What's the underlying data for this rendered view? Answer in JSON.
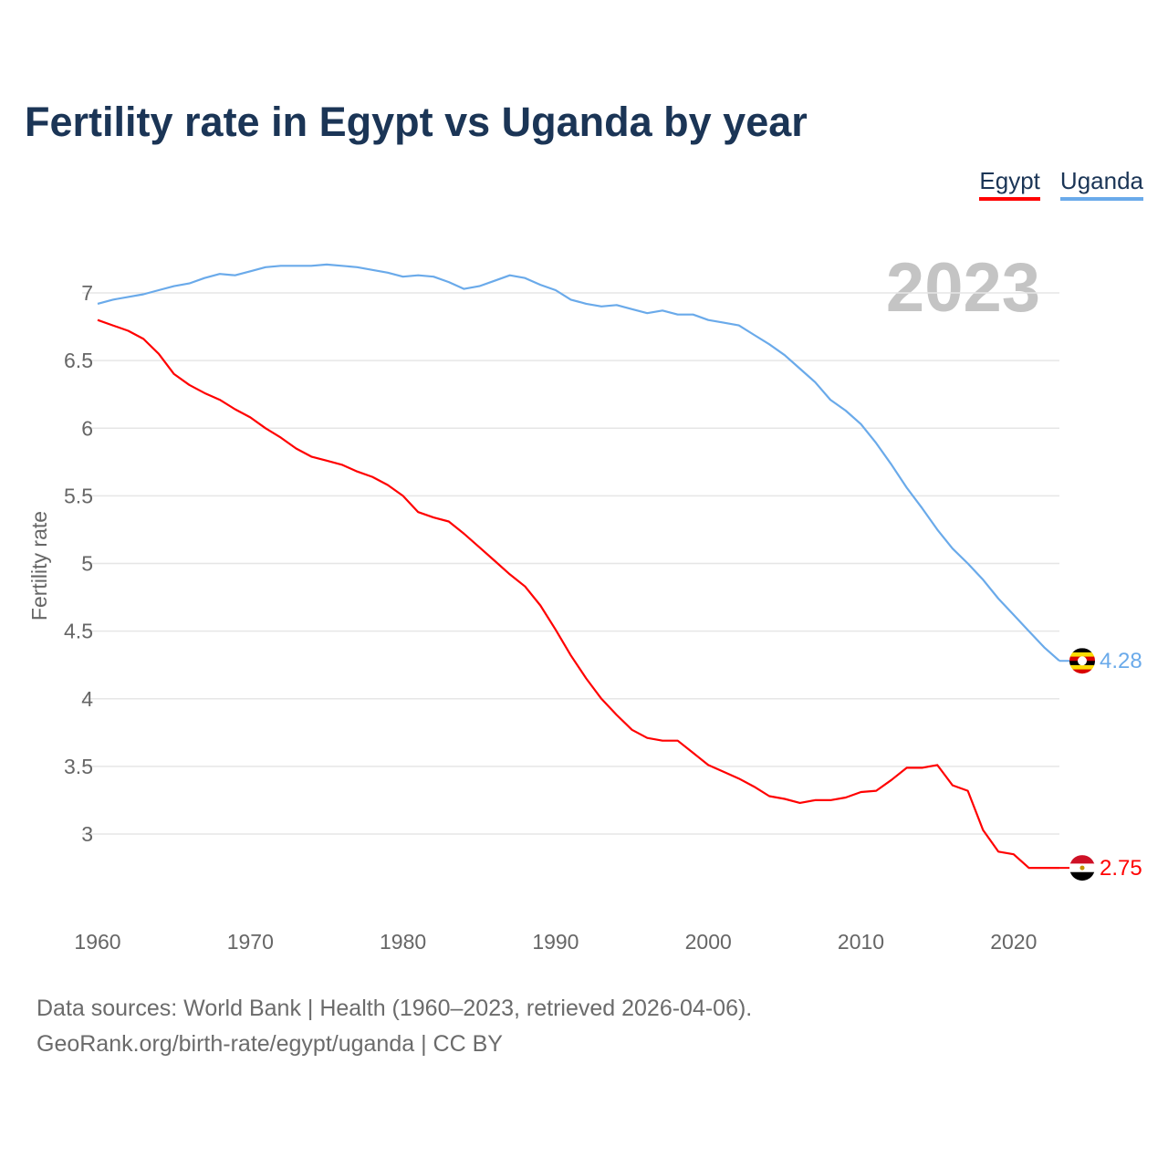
{
  "chart_data": {
    "type": "line",
    "title": "Fertility rate in Egypt vs Uganda by year",
    "xlabel": "",
    "ylabel": "Fertility rate",
    "xlim": [
      1960,
      2023
    ],
    "ylim": [
      2.5,
      7.3
    ],
    "yticks": [
      3,
      3.5,
      4,
      4.5,
      5,
      5.5,
      6,
      6.5,
      7
    ],
    "ytick_labels": [
      "3",
      "3.5",
      "4",
      "4.5",
      "5",
      "5.5",
      "6",
      "6.5",
      "7"
    ],
    "xticks": [
      1960,
      1970,
      1980,
      1990,
      2000,
      2010,
      2020
    ],
    "xtick_labels": [
      "1960",
      "1970",
      "1980",
      "1990",
      "2000",
      "2010",
      "2020"
    ],
    "grid": true,
    "legend_position": "top-right",
    "year_label": "2023",
    "x_start": 1960,
    "series": [
      {
        "name": "Egypt",
        "color": "#ff0000",
        "end_label": "2.75",
        "values": [
          6.8,
          6.76,
          6.72,
          6.66,
          6.55,
          6.4,
          6.32,
          6.26,
          6.21,
          6.14,
          6.08,
          6.0,
          5.93,
          5.85,
          5.79,
          5.76,
          5.73,
          5.68,
          5.64,
          5.58,
          5.5,
          5.38,
          5.34,
          5.31,
          5.22,
          5.12,
          5.02,
          4.92,
          4.83,
          4.69,
          4.51,
          4.32,
          4.15,
          4.0,
          3.88,
          3.77,
          3.71,
          3.69,
          3.69,
          3.6,
          3.51,
          3.46,
          3.41,
          3.35,
          3.28,
          3.26,
          3.23,
          3.25,
          3.25,
          3.27,
          3.31,
          3.32,
          3.4,
          3.49,
          3.49,
          3.51,
          3.36,
          3.32,
          3.03,
          2.87,
          2.85,
          2.75,
          2.75,
          2.75
        ]
      },
      {
        "name": "Uganda",
        "color": "#6aaaea",
        "end_label": "4.28",
        "values": [
          6.92,
          6.95,
          6.97,
          6.99,
          7.02,
          7.05,
          7.07,
          7.11,
          7.14,
          7.13,
          7.16,
          7.19,
          7.2,
          7.2,
          7.2,
          7.21,
          7.2,
          7.19,
          7.17,
          7.15,
          7.12,
          7.13,
          7.12,
          7.08,
          7.03,
          7.05,
          7.09,
          7.13,
          7.11,
          7.06,
          7.02,
          6.95,
          6.92,
          6.9,
          6.91,
          6.88,
          6.85,
          6.87,
          6.84,
          6.84,
          6.8,
          6.78,
          6.76,
          6.69,
          6.62,
          6.54,
          6.44,
          6.34,
          6.21,
          6.13,
          6.03,
          5.89,
          5.73,
          5.56,
          5.41,
          5.25,
          5.11,
          5.0,
          4.88,
          4.74,
          4.62,
          4.5,
          4.38,
          4.28
        ]
      }
    ]
  },
  "source": {
    "line1": "Data sources: World Bank | Health (1960–2023, retrieved 2026-04-06).",
    "line2": "GeoRank.org/birth-rate/egypt/uganda | CC BY"
  }
}
